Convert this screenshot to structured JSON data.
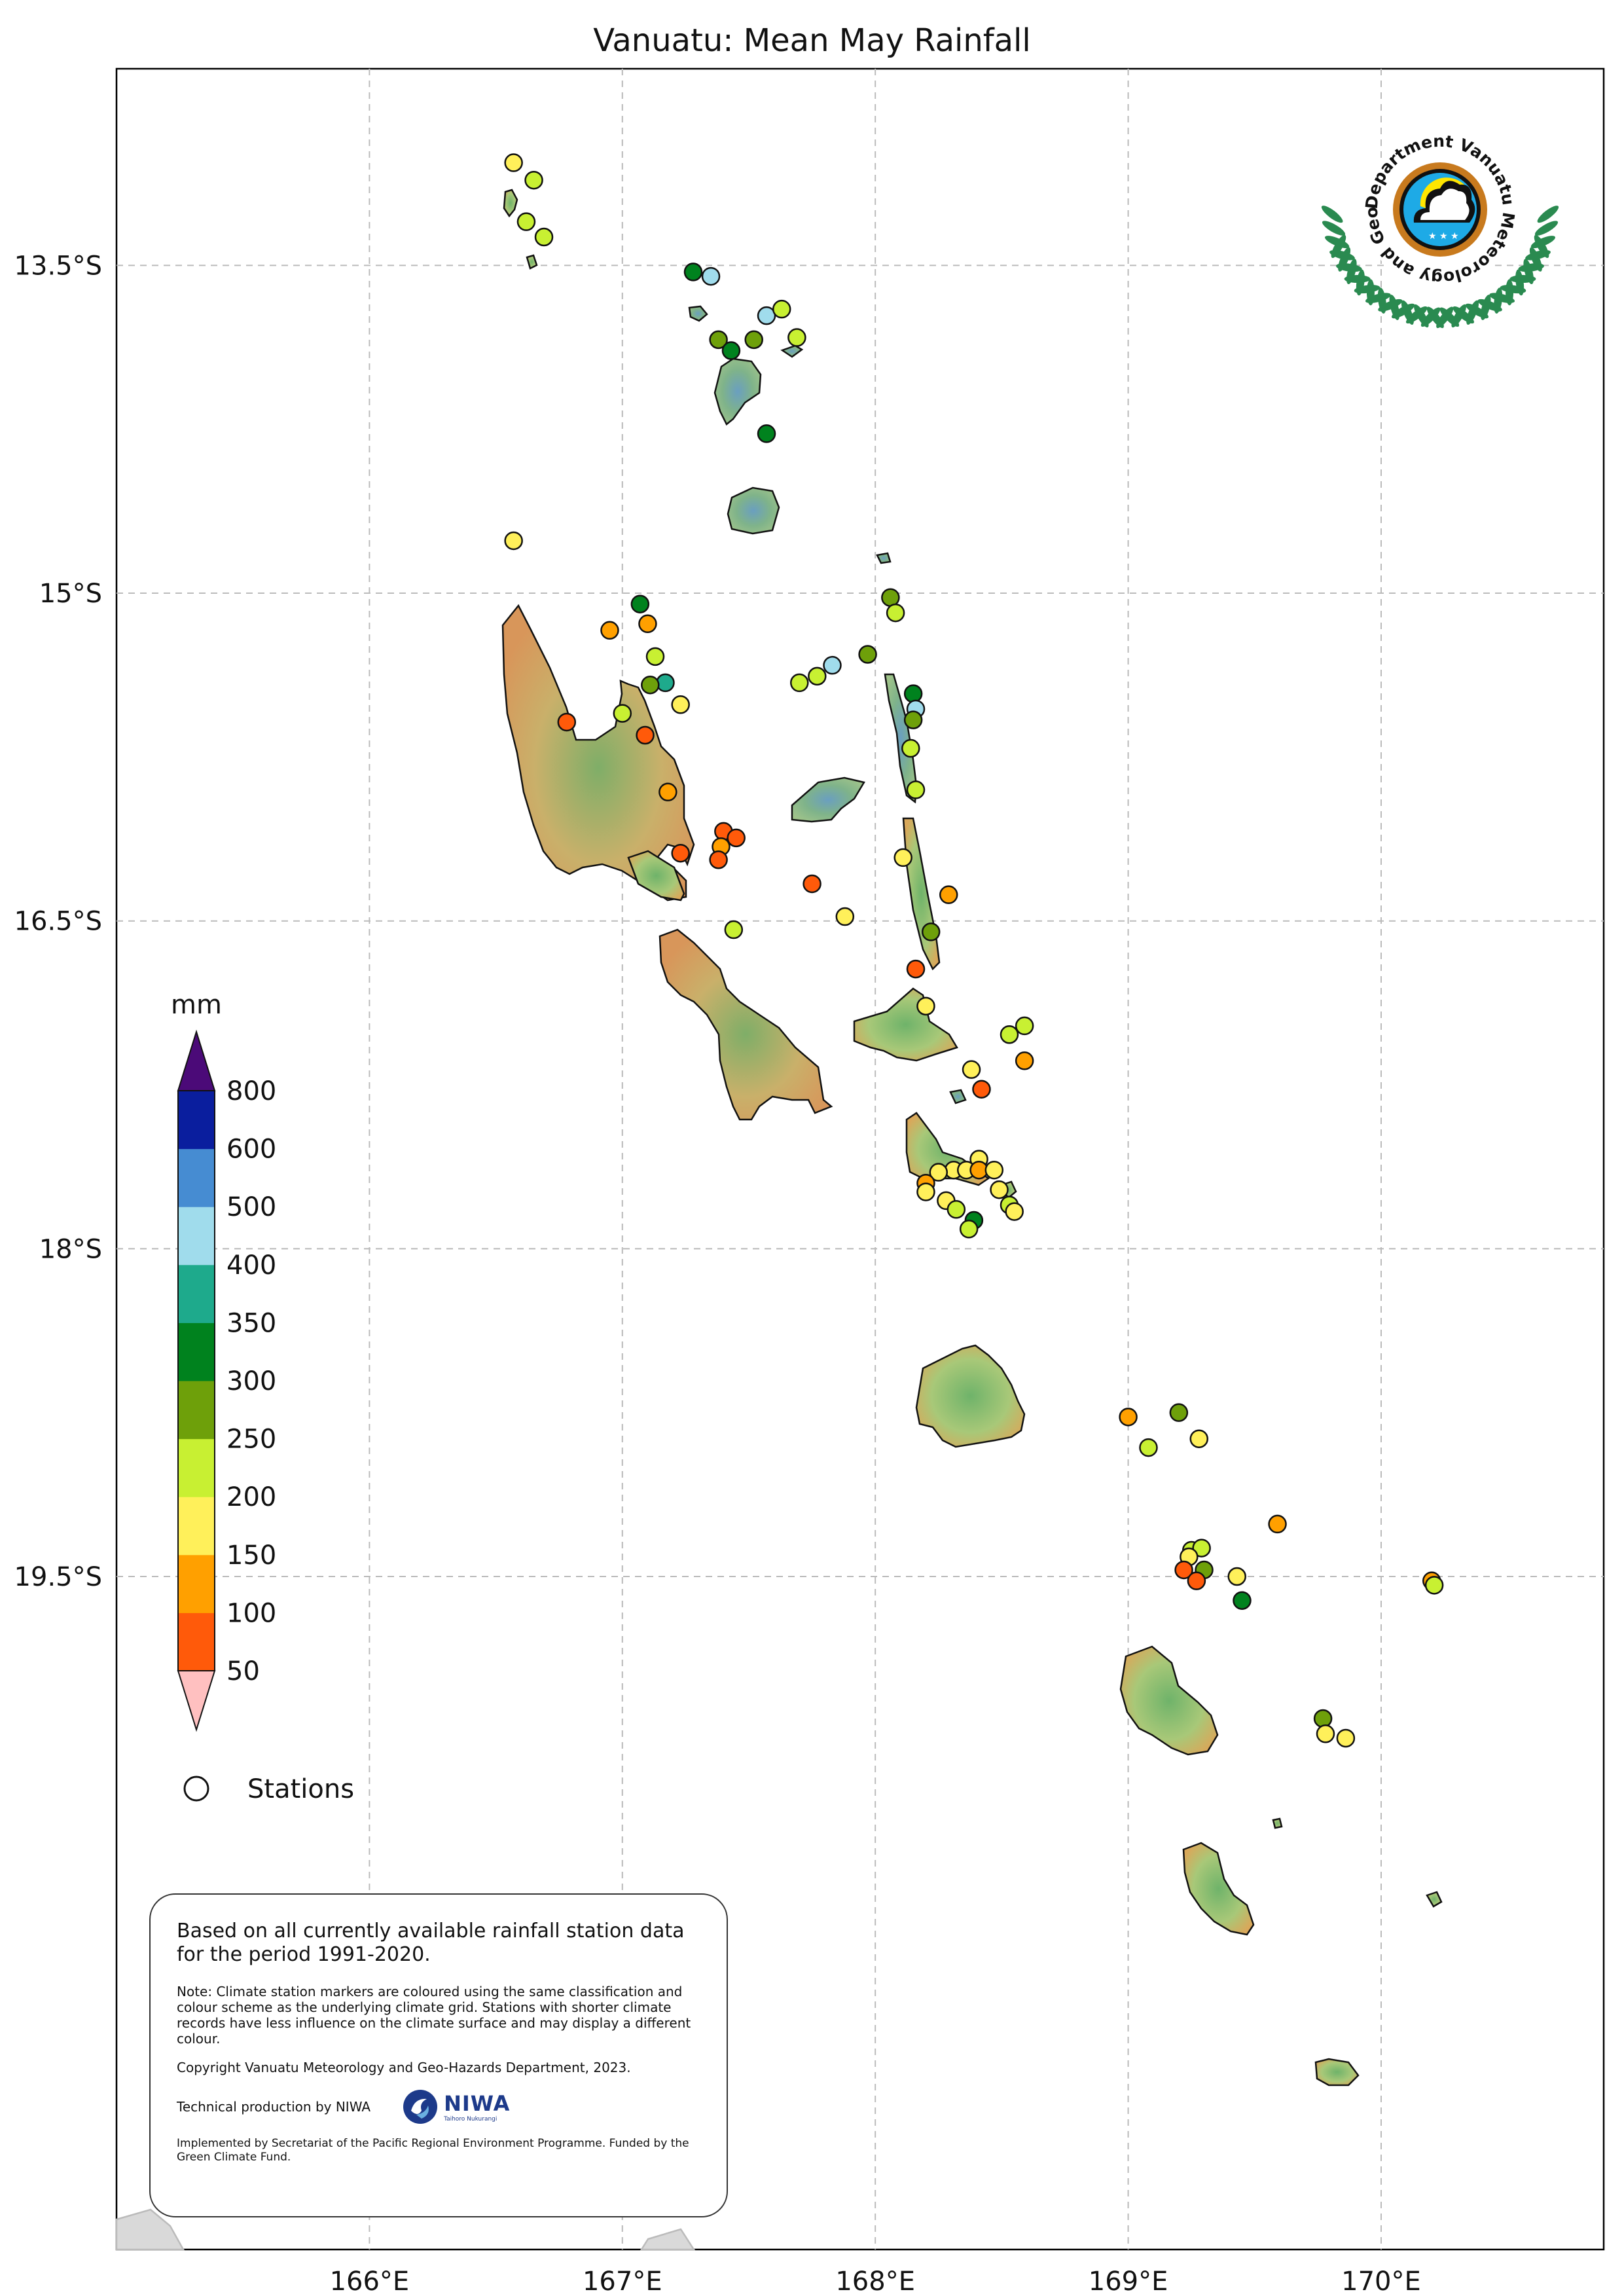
{
  "title": "Vanuatu: Mean May Rainfall",
  "map": {
    "lon_range": [
      165.0,
      170.88
    ],
    "lat_range": [
      -22.58,
      -12.6
    ],
    "lon_ticks": [
      {
        "value": 166,
        "label": "166°E"
      },
      {
        "value": 167,
        "label": "167°E"
      },
      {
        "value": 168,
        "label": "168°E"
      },
      {
        "value": 169,
        "label": "169°E"
      },
      {
        "value": 170,
        "label": "170°E"
      }
    ],
    "lat_ticks": [
      {
        "value": -13.5,
        "label": "13.5°S"
      },
      {
        "value": -15.0,
        "label": "15°S"
      },
      {
        "value": -16.5,
        "label": "16.5°S"
      },
      {
        "value": -18.0,
        "label": "18°S"
      },
      {
        "value": -19.5,
        "label": "19.5°S"
      }
    ],
    "grid": true
  },
  "colorbar": {
    "unit": "mm",
    "under_color": "#ffc0c0",
    "over_color": "#4b0a78",
    "bins": [
      {
        "label": "50",
        "color": "#ff5a0a"
      },
      {
        "label": "100",
        "color": "#ffa000"
      },
      {
        "label": "150",
        "color": "#fff05a"
      },
      {
        "label": "200",
        "color": "#c8f032"
      },
      {
        "label": "250",
        "color": "#6ea00a"
      },
      {
        "label": "300",
        "color": "#00821e"
      },
      {
        "label": "350",
        "color": "#1eaa8c"
      },
      {
        "label": "400",
        "color": "#a0dcec"
      },
      {
        "label": "500",
        "color": "#468cd2"
      },
      {
        "label": "600",
        "color": "#0a1e9e"
      }
    ],
    "top_label": "800"
  },
  "legend": {
    "stations_label": "Stations"
  },
  "stations": [
    {
      "lon": 166.57,
      "lat": -13.03,
      "class": "150"
    },
    {
      "lon": 166.65,
      "lat": -13.11,
      "class": "200"
    },
    {
      "lon": 166.62,
      "lat": -13.3,
      "class": "200"
    },
    {
      "lon": 166.69,
      "lat": -13.37,
      "class": "200"
    },
    {
      "lon": 167.28,
      "lat": -13.53,
      "class": "300"
    },
    {
      "lon": 167.35,
      "lat": -13.55,
      "class": "400"
    },
    {
      "lon": 167.57,
      "lat": -13.73,
      "class": "400"
    },
    {
      "lon": 167.63,
      "lat": -13.7,
      "class": "200"
    },
    {
      "lon": 167.38,
      "lat": -13.84,
      "class": "250"
    },
    {
      "lon": 167.43,
      "lat": -13.89,
      "class": "300"
    },
    {
      "lon": 167.52,
      "lat": -13.84,
      "class": "250"
    },
    {
      "lon": 167.69,
      "lat": -13.83,
      "class": "200"
    },
    {
      "lon": 167.57,
      "lat": -14.27,
      "class": "300"
    },
    {
      "lon": 166.57,
      "lat": -14.76,
      "class": "150"
    },
    {
      "lon": 167.07,
      "lat": -15.05,
      "class": "300"
    },
    {
      "lon": 167.1,
      "lat": -15.14,
      "class": "100"
    },
    {
      "lon": 166.95,
      "lat": -15.17,
      "class": "100"
    },
    {
      "lon": 167.13,
      "lat": -15.29,
      "class": "200"
    },
    {
      "lon": 167.17,
      "lat": -15.41,
      "class": "350"
    },
    {
      "lon": 167.11,
      "lat": -15.42,
      "class": "250"
    },
    {
      "lon": 167.23,
      "lat": -15.51,
      "class": "150"
    },
    {
      "lon": 167.0,
      "lat": -15.55,
      "class": "200"
    },
    {
      "lon": 166.78,
      "lat": -15.59,
      "class": "50"
    },
    {
      "lon": 167.09,
      "lat": -15.65,
      "class": "50"
    },
    {
      "lon": 167.18,
      "lat": -15.91,
      "class": "100"
    },
    {
      "lon": 167.4,
      "lat": -16.09,
      "class": "50"
    },
    {
      "lon": 167.45,
      "lat": -16.12,
      "class": "50"
    },
    {
      "lon": 167.39,
      "lat": -16.16,
      "class": "100"
    },
    {
      "lon": 167.23,
      "lat": -16.19,
      "class": "50"
    },
    {
      "lon": 167.38,
      "lat": -16.22,
      "class": "50"
    },
    {
      "lon": 167.75,
      "lat": -16.33,
      "class": "50"
    },
    {
      "lon": 167.88,
      "lat": -16.48,
      "class": "150"
    },
    {
      "lon": 167.44,
      "lat": -16.54,
      "class": "200"
    },
    {
      "lon": 168.06,
      "lat": -15.02,
      "class": "250"
    },
    {
      "lon": 168.08,
      "lat": -15.09,
      "class": "200"
    },
    {
      "lon": 167.97,
      "lat": -15.28,
      "class": "250"
    },
    {
      "lon": 167.83,
      "lat": -15.33,
      "class": "400"
    },
    {
      "lon": 167.77,
      "lat": -15.38,
      "class": "200"
    },
    {
      "lon": 167.7,
      "lat": -15.41,
      "class": "200"
    },
    {
      "lon": 168.15,
      "lat": -15.46,
      "class": "300"
    },
    {
      "lon": 168.16,
      "lat": -15.53,
      "class": "400"
    },
    {
      "lon": 168.15,
      "lat": -15.58,
      "class": "250"
    },
    {
      "lon": 168.14,
      "lat": -15.71,
      "class": "200"
    },
    {
      "lon": 168.16,
      "lat": -15.9,
      "class": "200"
    },
    {
      "lon": 168.11,
      "lat": -16.21,
      "class": "150"
    },
    {
      "lon": 168.29,
      "lat": -16.38,
      "class": "100"
    },
    {
      "lon": 168.22,
      "lat": -16.55,
      "class": "250"
    },
    {
      "lon": 168.16,
      "lat": -16.72,
      "class": "50"
    },
    {
      "lon": 168.2,
      "lat": -16.89,
      "class": "150"
    },
    {
      "lon": 168.59,
      "lat": -16.98,
      "class": "200"
    },
    {
      "lon": 168.53,
      "lat": -17.02,
      "class": "200"
    },
    {
      "lon": 168.59,
      "lat": -17.14,
      "class": "100"
    },
    {
      "lon": 168.38,
      "lat": -17.18,
      "class": "150"
    },
    {
      "lon": 168.42,
      "lat": -17.27,
      "class": "50"
    },
    {
      "lon": 168.41,
      "lat": -17.59,
      "class": "150"
    },
    {
      "lon": 168.31,
      "lat": -17.64,
      "class": "150"
    },
    {
      "lon": 168.36,
      "lat": -17.64,
      "class": "150"
    },
    {
      "lon": 168.41,
      "lat": -17.64,
      "class": "100"
    },
    {
      "lon": 168.47,
      "lat": -17.64,
      "class": "150"
    },
    {
      "lon": 168.25,
      "lat": -17.65,
      "class": "150"
    },
    {
      "lon": 168.2,
      "lat": -17.7,
      "class": "100"
    },
    {
      "lon": 168.2,
      "lat": -17.74,
      "class": "150"
    },
    {
      "lon": 168.28,
      "lat": -17.78,
      "class": "150"
    },
    {
      "lon": 168.32,
      "lat": -17.82,
      "class": "200"
    },
    {
      "lon": 168.49,
      "lat": -17.73,
      "class": "150"
    },
    {
      "lon": 168.53,
      "lat": -17.8,
      "class": "200"
    },
    {
      "lon": 168.55,
      "lat": -17.83,
      "class": "150"
    },
    {
      "lon": 168.39,
      "lat": -17.87,
      "class": "300"
    },
    {
      "lon": 168.37,
      "lat": -17.91,
      "class": "200"
    },
    {
      "lon": 169.0,
      "lat": -18.77,
      "class": "100"
    },
    {
      "lon": 169.2,
      "lat": -18.75,
      "class": "250"
    },
    {
      "lon": 169.28,
      "lat": -18.87,
      "class": "150"
    },
    {
      "lon": 169.08,
      "lat": -18.91,
      "class": "200"
    },
    {
      "lon": 169.59,
      "lat": -19.26,
      "class": "100"
    },
    {
      "lon": 169.25,
      "lat": -19.38,
      "class": "200"
    },
    {
      "lon": 169.29,
      "lat": -19.37,
      "class": "200"
    },
    {
      "lon": 169.24,
      "lat": -19.41,
      "class": "150"
    },
    {
      "lon": 169.22,
      "lat": -19.47,
      "class": "50"
    },
    {
      "lon": 169.3,
      "lat": -19.47,
      "class": "250"
    },
    {
      "lon": 169.27,
      "lat": -19.52,
      "class": "50"
    },
    {
      "lon": 169.43,
      "lat": -19.5,
      "class": "150"
    },
    {
      "lon": 169.45,
      "lat": -19.61,
      "class": "300"
    },
    {
      "lon": 170.2,
      "lat": -19.52,
      "class": "100"
    },
    {
      "lon": 170.21,
      "lat": -19.54,
      "class": "200"
    },
    {
      "lon": 169.77,
      "lat": -20.15,
      "class": "250"
    },
    {
      "lon": 169.78,
      "lat": -20.22,
      "class": "150"
    },
    {
      "lon": 169.86,
      "lat": -20.24,
      "class": "150"
    }
  ],
  "logo": {
    "text": "Department Vanuatu Meteorology and Geo-Hazards",
    "ring_color": "#c87a1e",
    "inner_color": "#1eaae6",
    "wreath_color": "#2a8a50"
  },
  "notes": {
    "main": "Based on all currently available rainfall station data for the period 1991-2020.",
    "note": "Note: Climate station markers are coloured using the same classification and colour scheme as the underlying climate grid. Stations with shorter climate records have less influence on the climate surface and may display a different colour.",
    "copyright": "Copyright Vanuatu Meteorology and Geo-Hazards Department, 2023.",
    "technical": "Technical production by NIWA",
    "niwa_logo_text": "NIWA",
    "niwa_logo_sub": "Taihoro Nukurangi",
    "implemented": "Implemented by Secretariat of the Pacific Regional Environment Programme. Funded by the Green Climate Fund."
  }
}
